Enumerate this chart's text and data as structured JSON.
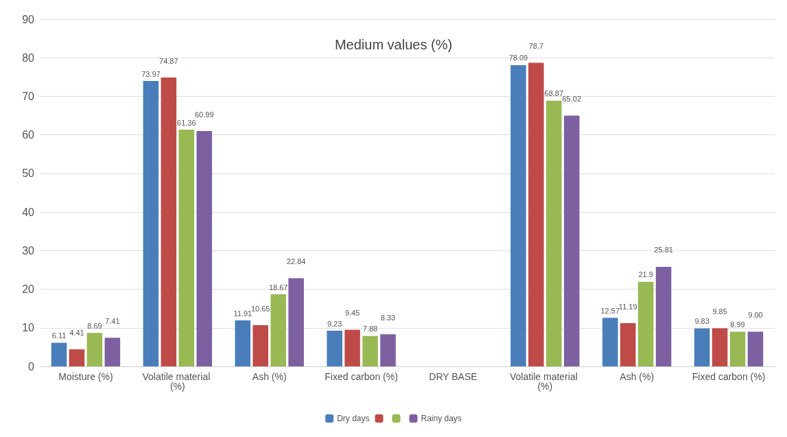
{
  "chart_data": {
    "type": "bar",
    "title": "Medium values (%)",
    "categories": [
      "Moisture (%)",
      "Volatile material (%)",
      "Ash (%)",
      "Fixed carbon (%)",
      "DRY BASE",
      "Volatile material (%)",
      "Ash (%)",
      "Fixed carbon (%)"
    ],
    "series": [
      {
        "name": "Dry days",
        "color": "#4a7ebb",
        "values": [
          6.11,
          73.97,
          11.91,
          9.23,
          null,
          78.09,
          12.57,
          9.83
        ],
        "value_labels": [
          "6.11",
          "73.97",
          "11.91",
          "9.23",
          null,
          "78.09",
          "12.57",
          "9.83"
        ]
      },
      {
        "color": "#be4b48",
        "values": [
          4.41,
          74.87,
          10.65,
          9.45,
          null,
          78.7,
          11.19,
          9.85
        ],
        "value_labels": [
          "4.41",
          "74.87",
          "10.65",
          "9.45",
          null,
          "78.7",
          "11.19",
          "9.85"
        ]
      },
      {
        "color": "#98b954",
        "values": [
          8.69,
          61.36,
          18.67,
          7.88,
          null,
          68.87,
          21.9,
          8.99
        ],
        "value_labels": [
          "8.69",
          "61.36",
          "18.67",
          "7.88",
          null,
          "68.87",
          "21.9",
          "8.99"
        ]
      },
      {
        "name": "Rainy days",
        "color": "#7d60a0",
        "values": [
          7.41,
          60.99,
          22.84,
          8.33,
          null,
          65.02,
          25.81,
          9
        ],
        "value_labels": [
          "7.41",
          "60.99",
          "22.84",
          "8.33",
          null,
          "65.02",
          "25.81",
          "9.00"
        ]
      }
    ],
    "ylim": [
      0,
      90
    ],
    "yticks": [
      0,
      10,
      20,
      30,
      40,
      50,
      60,
      70,
      80,
      90
    ],
    "grid": "y",
    "legend": "bottom"
  }
}
